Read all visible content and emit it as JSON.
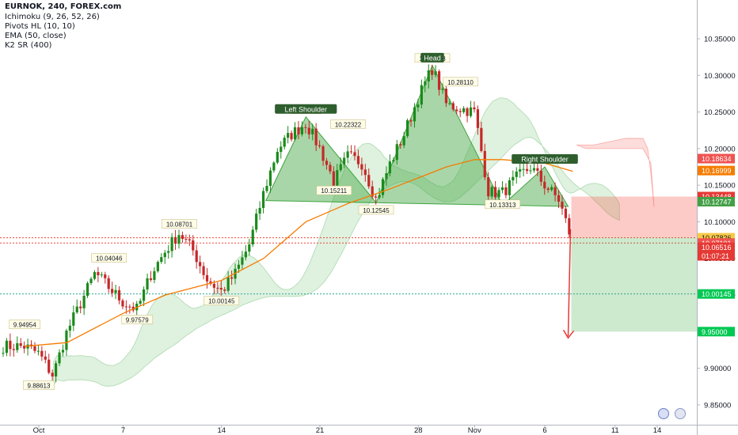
{
  "header": {
    "title": "EURNOK, 240, FOREX.com",
    "indicators": [
      "Ichimoku (9, 26, 52, 26)",
      "Pivots HL (10, 10)",
      "EMA (50, close)",
      "K2 SR (400)"
    ]
  },
  "colors": {
    "up": "#26a69a",
    "down": "#ef5350",
    "up_candle": "#1b8a1b",
    "down_candle": "#c62828",
    "ema": "#f57c00",
    "cloud_green": "#4caf50",
    "cloud_red": "#f44336",
    "stop": "#f44336",
    "target": "#4caf50",
    "pattern": "#3fa43f"
  },
  "chart_data": {
    "type": "candlestick",
    "symbol": "EURNOK",
    "timeframe": "240",
    "source": "FOREX.com",
    "ylim": [
      9.825,
      10.39
    ],
    "y_ticks": [
      9.85,
      9.9,
      9.95,
      10.0,
      10.05,
      10.1,
      10.15,
      10.2,
      10.25,
      10.3,
      10.35
    ],
    "y_tick_labels": [
      "9.85000",
      "9.90000",
      "9.95000",
      "10.00000",
      "10.05000",
      "10.10000",
      "10.15000",
      "10.20000",
      "10.25000",
      "10.30000",
      "10.35000"
    ],
    "x_labels": [
      "Oct",
      "7",
      "14",
      "21",
      "28",
      "Nov",
      "6",
      "11",
      "14"
    ],
    "x_label_dates": [
      "2017-10-01",
      "2017-10-07",
      "2017-10-14",
      "2017-10-21",
      "2017-10-28",
      "2017-11-01",
      "2017-11-06",
      "2017-11-11",
      "2017-11-14"
    ],
    "price_path": [
      [
        "2017-09-30",
        9.93
      ],
      [
        "2017-10-01",
        9.92
      ],
      [
        "2017-10-02",
        9.89
      ],
      [
        "2017-10-03",
        9.95
      ],
      [
        "2017-10-04",
        9.99
      ],
      [
        "2017-10-05",
        10.03
      ],
      [
        "2017-10-06",
        10.01
      ],
      [
        "2017-10-07",
        9.99
      ],
      [
        "2017-10-08",
        9.98
      ],
      [
        "2017-10-09",
        10.03
      ],
      [
        "2017-10-10",
        10.06
      ],
      [
        "2017-10-11",
        10.085
      ],
      [
        "2017-10-12",
        10.06
      ],
      [
        "2017-10-13",
        10.02
      ],
      [
        "2017-10-14",
        10.005
      ],
      [
        "2017-10-15",
        10.03
      ],
      [
        "2017-10-16",
        10.07
      ],
      [
        "2017-10-17",
        10.14
      ],
      [
        "2017-10-18",
        10.2
      ],
      [
        "2017-10-19",
        10.22
      ],
      [
        "2017-10-20",
        10.235
      ],
      [
        "2017-10-21",
        10.2
      ],
      [
        "2017-10-22",
        10.155
      ],
      [
        "2017-10-23",
        10.19
      ],
      [
        "2017-10-24",
        10.18
      ],
      [
        "2017-10-25",
        10.13
      ],
      [
        "2017-10-26",
        10.18
      ],
      [
        "2017-10-27",
        10.22
      ],
      [
        "2017-10-28",
        10.27
      ],
      [
        "2017-10-29",
        10.31
      ],
      [
        "2017-10-30",
        10.26
      ],
      [
        "2017-10-31",
        10.255
      ],
      [
        "2017-11-01",
        10.25
      ],
      [
        "2017-11-02",
        10.14
      ],
      [
        "2017-11-03",
        10.14
      ],
      [
        "2017-11-04",
        10.16
      ],
      [
        "2017-11-05",
        10.175
      ],
      [
        "2017-11-06",
        10.15
      ],
      [
        "2017-11-07",
        10.13
      ],
      [
        "2017-11-08",
        10.07
      ]
    ],
    "ema": [
      [
        "2017-09-30",
        9.93
      ],
      [
        "2017-10-03",
        9.935
      ],
      [
        "2017-10-07",
        9.975
      ],
      [
        "2017-10-10",
        10.0
      ],
      [
        "2017-10-14",
        10.02
      ],
      [
        "2017-10-17",
        10.05
      ],
      [
        "2017-10-20",
        10.1
      ],
      [
        "2017-10-23",
        10.125
      ],
      [
        "2017-10-26",
        10.145
      ],
      [
        "2017-10-28",
        10.16
      ],
      [
        "2017-10-30",
        10.175
      ],
      [
        "2017-11-01",
        10.185
      ],
      [
        "2017-11-03",
        10.185
      ],
      [
        "2017-11-06",
        10.18
      ],
      [
        "2017-11-08",
        10.169
      ]
    ],
    "pivots": [
      {
        "label": "9.94954",
        "date": "2017-09-30",
        "value": 9.94954,
        "type": "high"
      },
      {
        "label": "9.88613",
        "date": "2017-10-01",
        "value": 9.88613,
        "type": "low"
      },
      {
        "label": "10.04046",
        "date": "2017-10-06",
        "value": 10.04046,
        "type": "high"
      },
      {
        "label": "9.97579",
        "date": "2017-10-08",
        "value": 9.97579,
        "type": "low"
      },
      {
        "label": "10.08701",
        "date": "2017-10-11",
        "value": 10.08701,
        "type": "high"
      },
      {
        "label": "10.00145",
        "date": "2017-10-14",
        "value": 10.00145,
        "type": "low"
      },
      {
        "label": "10.2433",
        "date": "2017-10-20",
        "value": 10.2433,
        "type": "high"
      },
      {
        "label": "10.15211",
        "date": "2017-10-22",
        "value": 10.15211,
        "type": "low"
      },
      {
        "label": "10.22322",
        "date": "2017-10-23",
        "value": 10.22322,
        "type": "high"
      },
      {
        "label": "10.12545",
        "date": "2017-10-25",
        "value": 10.12545,
        "type": "low"
      },
      {
        "label": "10.31348",
        "date": "2017-10-29",
        "value": 10.31348,
        "type": "high"
      },
      {
        "label": "10.28110",
        "date": "2017-10-31",
        "value": 10.2811,
        "type": "high"
      },
      {
        "label": "10.13313",
        "date": "2017-11-03",
        "value": 10.13313,
        "type": "low"
      }
    ],
    "pattern_labels": [
      {
        "text": "Left Shoulder",
        "date": "2017-10-20",
        "value": 10.2433
      },
      {
        "text": "Head",
        "date": "2017-10-29",
        "value": 10.31348
      },
      {
        "text": "Right Shoulder",
        "date": "2017-11-06",
        "value": 10.175
      }
    ],
    "horizontal_levels": [
      {
        "value": 10.07826,
        "color": "#f44336",
        "style": "dotted"
      },
      {
        "value": 10.07101,
        "color": "#f44336",
        "style": "dotted"
      },
      {
        "value": 10.00145,
        "color": "#26a69a",
        "style": "dotted"
      }
    ],
    "price_tags": [
      {
        "label": "10.18634",
        "value": 10.18634,
        "bg": "#ef5350",
        "fg": "#ffffff"
      },
      {
        "label": "10.16999",
        "value": 10.16999,
        "bg": "#f57c00",
        "fg": "#ffffff"
      },
      {
        "label": "10.13448",
        "value": 10.13448,
        "bg": "#e53935",
        "fg": "#ffffff"
      },
      {
        "label": "10.12747",
        "value": 10.12747,
        "bg": "#43a047",
        "fg": "#ffffff"
      },
      {
        "label": "10.07826",
        "value": 10.07826,
        "bg": "#f7c948",
        "fg": "#131722"
      },
      {
        "label": "10.07101",
        "value": 10.07101,
        "bg": "#ef5350",
        "fg": "#ffffff"
      },
      {
        "label": "10.06516",
        "value": 10.06516,
        "bg": "#e53935",
        "fg": "#ffffff"
      },
      {
        "label": "01:07:21",
        "value": 10.0535,
        "bg": "#e53935",
        "fg": "#ffffff"
      },
      {
        "label": "10.00145",
        "value": 10.00145,
        "bg": "#00c853",
        "fg": "#ffffff"
      },
      {
        "label": "9.95000",
        "value": 9.95,
        "bg": "#00c853",
        "fg": "#ffffff"
      }
    ],
    "trade": {
      "entry": 10.07826,
      "stop": 10.13448,
      "target": 9.95,
      "start": "2017-11-08",
      "end": "2017-11-14"
    },
    "grid": false
  }
}
